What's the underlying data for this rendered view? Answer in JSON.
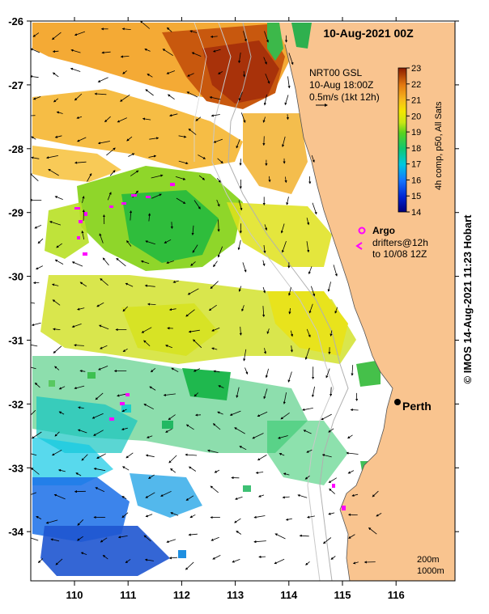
{
  "title": "10-Aug-2021 00Z",
  "product_info": {
    "line1": "NRT00 GSL",
    "line2": "10-Aug 18:00Z",
    "line3": "0.5m/s (1kt 12h)"
  },
  "colorbar": {
    "label": "4h comp, p50, All Sats",
    "min": 14,
    "max": 23,
    "ticks": [
      "23",
      "22",
      "21",
      "20",
      "19",
      "18",
      "17",
      "16",
      "15",
      "14"
    ]
  },
  "legend": {
    "argo_label": "Argo",
    "drifters_line1": "drifters@12h",
    "drifters_line2": "to 10/08 12Z"
  },
  "axes": {
    "x_ticks": [
      "110",
      "111",
      "112",
      "113",
      "114",
      "115",
      "116"
    ],
    "y_ticks": [
      "-26",
      "-27",
      "-28",
      "-29",
      "-30",
      "-31",
      "-32",
      "-33",
      "-34"
    ],
    "lon_range": [
      109.2,
      117.0
    ],
    "lat_range": [
      -26.0,
      -34.8
    ]
  },
  "city": {
    "name": "Perth",
    "lon": 115.86,
    "lat": -31.95
  },
  "depth_contours": {
    "line1": "200m",
    "line2": "1000m"
  },
  "credit": "© IMOS 14-Aug-2021 11:23 Hobart",
  "colors": {
    "land": "#f9c48f",
    "argo": "#ff00ff"
  }
}
